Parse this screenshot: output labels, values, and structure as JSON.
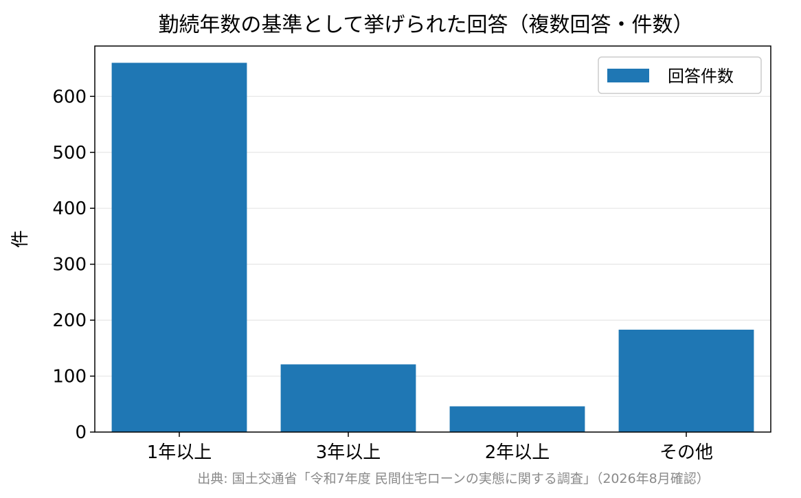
{
  "chart_data": {
    "type": "bar",
    "title": "勤続年数の基準として挙げられた回答（複数回答・件数）",
    "xlabel": "",
    "ylabel": "件",
    "categories": [
      "1年以上",
      "3年以上",
      "2年以上",
      "その他"
    ],
    "series": [
      {
        "name": "回答件数",
        "values": [
          660,
          121,
          46,
          183
        ]
      }
    ],
    "ylim": [
      0,
      690
    ],
    "yticks": [
      0,
      100,
      200,
      300,
      400,
      500,
      600
    ],
    "grid": "horizontal",
    "legend": "top-right",
    "bar_color": "#1f77b4"
  },
  "source": "出典: 国土交通省「令和7年度 民間住宅ローンの実態に関する調査」（2026年8月確認）"
}
